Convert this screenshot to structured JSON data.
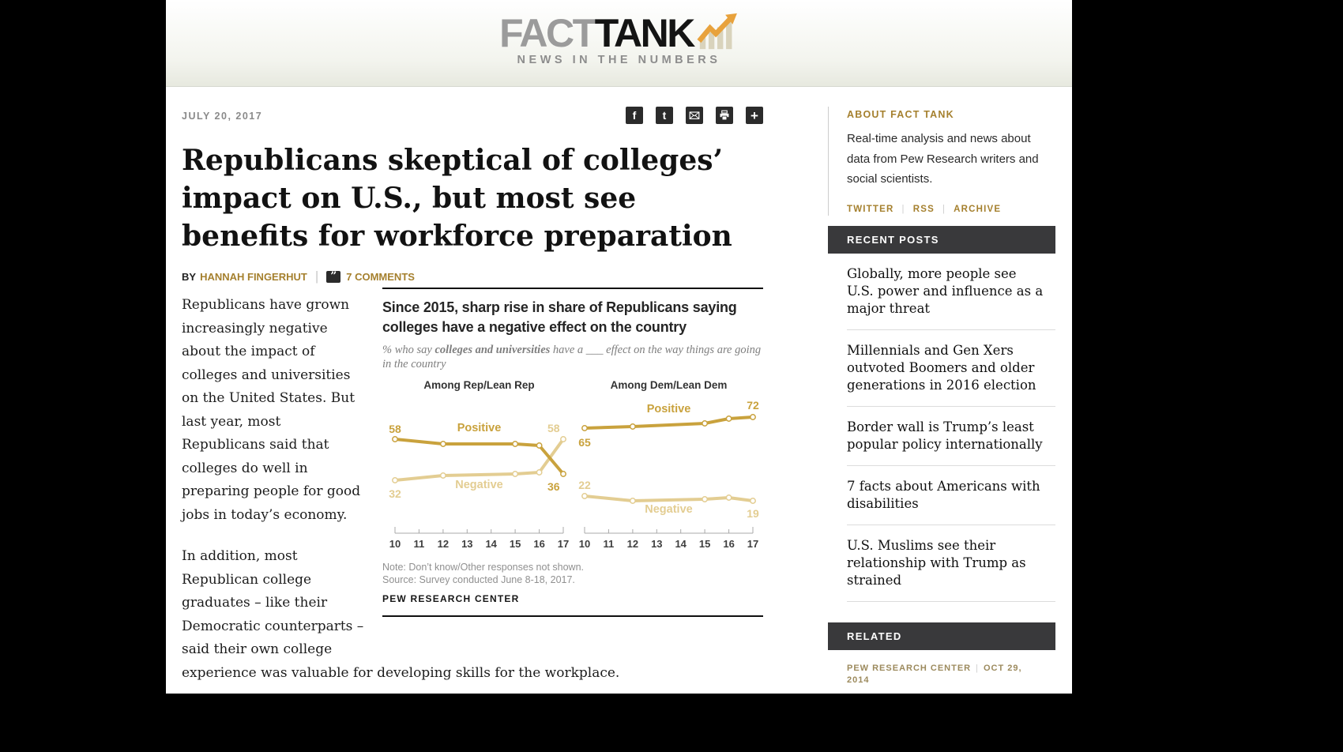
{
  "masthead": {
    "logo_fact": "FACT",
    "logo_tank": "TANK",
    "tagline": "NEWS IN THE NUMBERS"
  },
  "article": {
    "date": "JULY 20, 2017",
    "title": "Republicans skeptical of colleges’ impact on U.S., but most see benefits for workforce preparation",
    "byline": {
      "by": "BY",
      "author": "HANNAH FINGERHUT",
      "comments": "7 COMMENTS"
    },
    "paragraphs": [
      "Republicans have grown increasingly negative about the impact of colleges and universities on the United States. But last year, most Republicans said that colleges do well in preparing people for good jobs in today’s economy.",
      "In addition, most Republican college graduates – like their Democratic counterparts – said their own college experience was valuable for developing skills for the workplace."
    ],
    "share_icons": [
      {
        "name": "facebook"
      },
      {
        "name": "twitter"
      },
      {
        "name": "email"
      },
      {
        "name": "print"
      },
      {
        "name": "more"
      }
    ]
  },
  "chart_data": {
    "type": "line",
    "title": "Since 2015, sharp rise in share of Republicans saying colleges have a negative effect on the country",
    "subtitle_prefix": "% who say ",
    "subtitle_bold": "colleges and universities",
    "subtitle_suffix": " have a ___ effect on the way things are going in the country",
    "panel_headers": [
      "Among Rep/Lean Rep",
      "Among Dem/Lean Dem"
    ],
    "x_tick_labels": [
      "10",
      "11",
      "12",
      "13",
      "14",
      "15",
      "16",
      "17"
    ],
    "x_range": [
      2010,
      2017
    ],
    "y_range": [
      0,
      80
    ],
    "colors": {
      "positive": "#c9a23d",
      "negative": "#e3cd92"
    },
    "series": [
      {
        "name": "Rep/Lean Rep – Negative",
        "panel": 0,
        "color_key": "negative",
        "x": [
          2010,
          2012,
          2015,
          2016,
          2017
        ],
        "values": [
          32,
          35,
          36,
          37,
          58
        ]
      },
      {
        "name": "Rep/Lean Rep – Positive",
        "panel": 0,
        "color_key": "positive",
        "x": [
          2010,
          2012,
          2015,
          2016,
          2017
        ],
        "values": [
          58,
          55,
          55,
          54,
          36
        ]
      },
      {
        "name": "Dem/Lean Dem – Negative",
        "panel": 1,
        "color_key": "negative",
        "x": [
          2010,
          2012,
          2015,
          2016,
          2017
        ],
        "values": [
          22,
          19,
          20,
          21,
          19
        ]
      },
      {
        "name": "Dem/Lean Dem – Positive",
        "panel": 1,
        "color_key": "positive",
        "x": [
          2010,
          2012,
          2015,
          2016,
          2017
        ],
        "values": [
          65,
          66,
          68,
          71,
          72
        ]
      }
    ],
    "annotations": [
      {
        "panel": 0,
        "year": 2010,
        "value": 58,
        "dy": -8,
        "text": "58",
        "color_key": "positive"
      },
      {
        "panel": 0,
        "year": 2010,
        "value": 32,
        "dy": 22,
        "text": "32",
        "color_key": "negative"
      },
      {
        "panel": 0,
        "year": 2013.5,
        "value": 63,
        "dy": 0,
        "text": "Positive",
        "color_key": "positive"
      },
      {
        "panel": 0,
        "year": 2013.5,
        "value": 27,
        "dy": 0,
        "text": "Negative",
        "color_key": "negative"
      },
      {
        "panel": 0,
        "year": 2016.6,
        "value": 58,
        "dy": -9,
        "text": "58",
        "color_key": "negative"
      },
      {
        "panel": 0,
        "year": 2016.6,
        "value": 36,
        "dy": 21,
        "text": "36",
        "color_key": "positive"
      },
      {
        "panel": 1,
        "year": 2010,
        "value": 22,
        "dy": -9,
        "text": "22",
        "color_key": "negative"
      },
      {
        "panel": 1,
        "year": 2010,
        "value": 65,
        "dy": 23,
        "text": "65",
        "color_key": "positive"
      },
      {
        "panel": 1,
        "year": 2013.5,
        "value": 75,
        "dy": 0,
        "text": "Positive",
        "color_key": "positive"
      },
      {
        "panel": 1,
        "year": 2013.5,
        "value": 11.5,
        "dy": 0,
        "text": "Negative",
        "color_key": "negative"
      },
      {
        "panel": 1,
        "year": 2017,
        "value": 72,
        "dy": -10,
        "text": "72",
        "color_key": "positive"
      },
      {
        "panel": 1,
        "year": 2017,
        "value": 19,
        "dy": 21,
        "text": "19",
        "color_key": "negative"
      }
    ],
    "note": "Note: Don’t know/Other responses not shown.",
    "source": "Source: Survey conducted June 8-18, 2017.",
    "credit": "PEW RESEARCH CENTER"
  },
  "sidebar": {
    "about": {
      "header": "ABOUT FACT TANK",
      "text": "Real-time analysis and news about data from Pew Research writers and social scientists.",
      "links": [
        {
          "label": "TWITTER"
        },
        {
          "label": "RSS"
        },
        {
          "label": "ARCHIVE"
        }
      ]
    },
    "recent_posts": {
      "header": "RECENT POSTS",
      "items": [
        "Globally, more people see U.S. power and influence as a major threat",
        "Millennials and Gen Xers outvoted Boomers and older generations in 2016 election",
        "Border wall is Trump’s least popular policy internationally",
        "7 facts about Americans with disabilities",
        "U.S. Muslims see their relationship with Trump as strained"
      ]
    },
    "related": {
      "header": "RELATED",
      "source": "PEW RESEARCH CENTER",
      "date": "OCT 29, 2014"
    }
  }
}
